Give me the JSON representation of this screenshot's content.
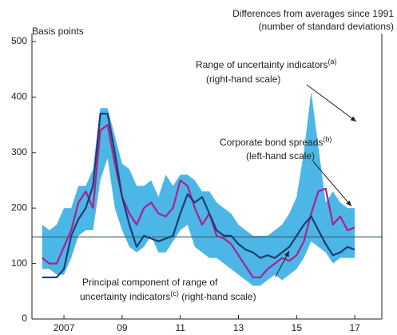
{
  "chart_data": {
    "type": "line",
    "y_label": "Basis points",
    "y2_label_lines": [
      "Differences from averages since 1991",
      "(number of standard deviations)"
    ],
    "x": [
      2006.75,
      2007,
      2007.25,
      2007.5,
      2007.75,
      2008,
      2008.25,
      2008.5,
      2008.75,
      2009,
      2009.25,
      2009.5,
      2009.75,
      2010,
      2010.25,
      2010.5,
      2010.75,
      2011,
      2011.25,
      2011.5,
      2011.75,
      2012,
      2012.25,
      2012.5,
      2012.75,
      2013,
      2013.25,
      2013.5,
      2013.75,
      2014,
      2014.25,
      2014.5,
      2014.75,
      2015,
      2015.25,
      2015.5,
      2015.75,
      2016,
      2016.25,
      2016.5,
      2016.75,
      2017,
      2017.25,
      2017.5
    ],
    "band": {
      "color": "#4cb6e6",
      "upper": [
        170,
        160,
        170,
        200,
        200,
        240,
        240,
        270,
        380,
        380,
        330,
        280,
        270,
        240,
        240,
        250,
        220,
        260,
        240,
        260,
        260,
        250,
        230,
        230,
        210,
        200,
        190,
        170,
        160,
        150,
        150,
        150,
        160,
        170,
        190,
        220,
        300,
        410,
        310,
        210,
        230,
        210,
        200,
        200
      ],
      "lower": [
        90,
        90,
        80,
        80,
        110,
        150,
        160,
        160,
        250,
        290,
        200,
        160,
        130,
        120,
        130,
        150,
        120,
        120,
        140,
        160,
        170,
        130,
        120,
        110,
        110,
        100,
        90,
        80,
        70,
        60,
        60,
        70,
        80,
        70,
        80,
        90,
        110,
        140,
        130,
        120,
        100,
        110,
        110,
        110
      ]
    },
    "series": [
      {
        "color": "#a8228e",
        "values": [
          110,
          100,
          100,
          130,
          160,
          210,
          230,
          200,
          340,
          350,
          280,
          220,
          190,
          170,
          200,
          210,
          190,
          185,
          200,
          250,
          240,
          200,
          170,
          190,
          150,
          145,
          135,
          115,
          95,
          75,
          75,
          90,
          100,
          110,
          105,
          115,
          140,
          190,
          230,
          235,
          170,
          185,
          160,
          165
        ]
      },
      {
        "color": "#1b3e72",
        "values": [
          75,
          75,
          75,
          90,
          150,
          180,
          200,
          240,
          370,
          370,
          300,
          220,
          170,
          130,
          150,
          145,
          140,
          145,
          150,
          190,
          225,
          210,
          220,
          190,
          160,
          150,
          150,
          135,
          125,
          120,
          110,
          115,
          110,
          120,
          130,
          150,
          170,
          185,
          160,
          135,
          115,
          120,
          130,
          125
        ]
      }
    ],
    "hline": 148,
    "xlim": [
      2006.4,
      2018.43
    ],
    "xticks": [
      {
        "value": 2007.5,
        "label": "2007"
      },
      {
        "value": 2009.5,
        "label": "09"
      },
      {
        "value": 2011.5,
        "label": "11"
      },
      {
        "value": 2013.5,
        "label": "13"
      },
      {
        "value": 2015.5,
        "label": "15"
      },
      {
        "value": 2017.5,
        "label": "17"
      }
    ],
    "ylim": [
      0,
      500
    ],
    "yticks": [
      0,
      100,
      200,
      300,
      400,
      500
    ],
    "annotations": [
      {
        "lines": [
          [
            "Range of uncertainty indicators",
            "(a)",
            ""
          ],
          [
            "(right-hand scale)",
            "",
            ""
          ]
        ]
      },
      {
        "lines": [
          [
            "Corporate bond spreads",
            "(b)",
            ""
          ],
          [
            "(left-hand scale)",
            "",
            ""
          ]
        ]
      },
      {
        "lines": [
          [
            "Principal component of range of",
            "",
            ""
          ],
          [
            "uncertainty indicators",
            "(c)",
            " (right-hand scale)"
          ]
        ]
      }
    ]
  }
}
